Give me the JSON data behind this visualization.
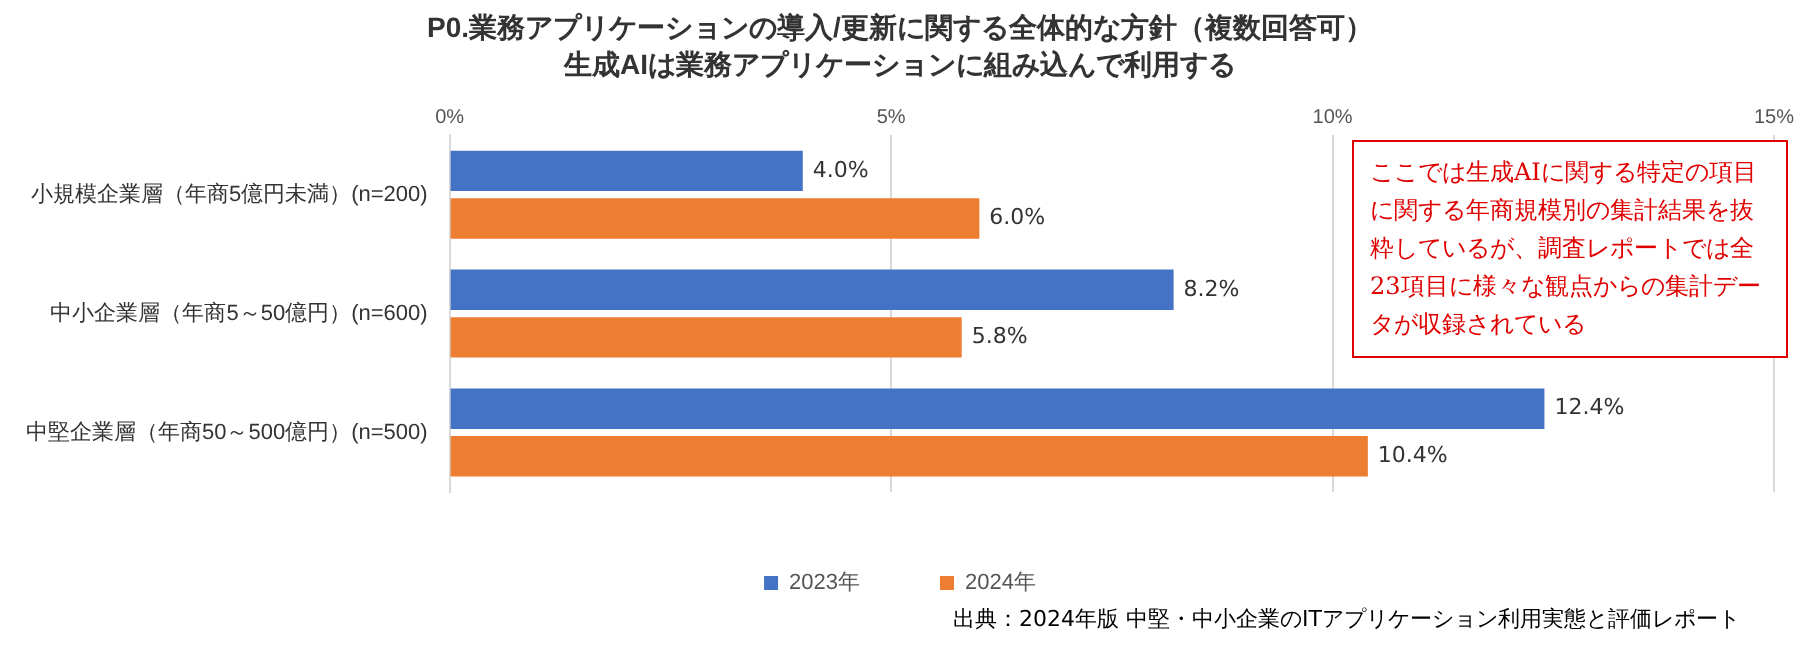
{
  "chart_data": {
    "type": "bar",
    "orientation": "horizontal",
    "title": "P0.業務アプリケーションの導入/更新に関する全体的な方針（複数回答可）",
    "subtitle": "生成AIは業務アプリケーションに組み込んで利用する",
    "categories": [
      "小規模企業層（年商5億円未満）(n=200)",
      "中小企業層（年商5～50億円）(n=600)",
      "中堅企業層（年商50～500億円）(n=500)"
    ],
    "series": [
      {
        "name": "2023年",
        "color": "#4472c4",
        "values": [
          4.0,
          8.2,
          12.4
        ],
        "value_labels": [
          "4.0%",
          "8.2%",
          "12.4%"
        ]
      },
      {
        "name": "2024年",
        "color": "#ed7d31",
        "values": [
          6.0,
          5.8,
          10.4
        ],
        "value_labels": [
          "6.0%",
          "5.8%",
          "10.4%"
        ]
      }
    ],
    "xlim": [
      0,
      15
    ],
    "xticks": [
      {
        "value": 0,
        "label": "0%"
      },
      {
        "value": 5,
        "label": "5%"
      },
      {
        "value": 10,
        "label": "10%"
      },
      {
        "value": 15,
        "label": "15%"
      }
    ],
    "grid": "x",
    "legend": "bottom",
    "annotations": [
      "ここでは生成AIに関する特定の項目に関する年商規模別の集計結果を抜粋しているが、調査レポートでは全23項目に様々な観点からの集計データが収録されている",
      "出典：2024年版 中堅・中小企業のITアプリケーション利用実態と評価レポート"
    ]
  }
}
